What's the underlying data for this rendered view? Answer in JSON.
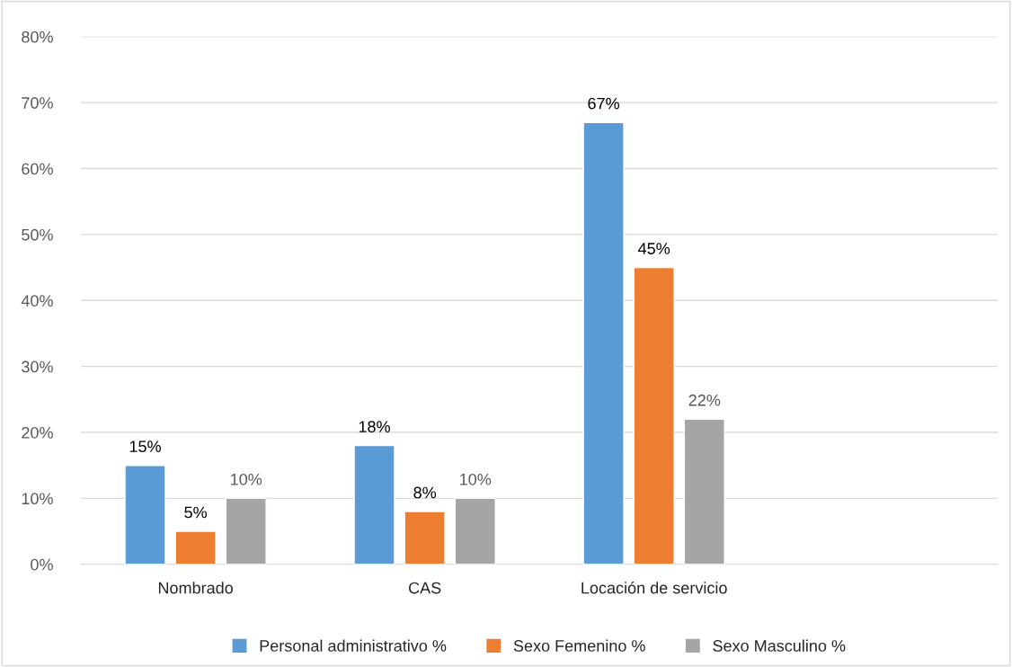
{
  "chart_data": {
    "type": "bar",
    "categories": [
      "Nombrado",
      "CAS",
      "Locación de servicio",
      null
    ],
    "series": [
      {
        "name": "Personal administrativo %",
        "color": "#5b9bd5",
        "values": [
          15,
          18,
          67,
          null
        ],
        "value_labels": [
          "15%",
          "18%",
          "67%",
          null
        ]
      },
      {
        "name": "Sexo Femenino %",
        "color": "#ed7d31",
        "values": [
          5,
          8,
          45,
          null
        ],
        "value_labels": [
          "5%",
          "8%",
          "45%",
          null
        ]
      },
      {
        "name": "Sexo Masculino %",
        "color": "#a5a5a5",
        "values": [
          10,
          10,
          22,
          null
        ],
        "value_labels": [
          "10%",
          "10%",
          "22%",
          null
        ]
      }
    ],
    "ylim": [
      0,
      80
    ],
    "yticks": [
      {
        "value": 0,
        "label": "0%"
      },
      {
        "value": 10,
        "label": "10%"
      },
      {
        "value": 20,
        "label": "20%"
      },
      {
        "value": 30,
        "label": "30%"
      },
      {
        "value": 40,
        "label": "40%"
      },
      {
        "value": 50,
        "label": "50%"
      },
      {
        "value": 60,
        "label": "60%"
      },
      {
        "value": 70,
        "label": "70%"
      },
      {
        "value": 80,
        "label": "80%"
      }
    ],
    "grid": "y",
    "legend": "bottom"
  }
}
